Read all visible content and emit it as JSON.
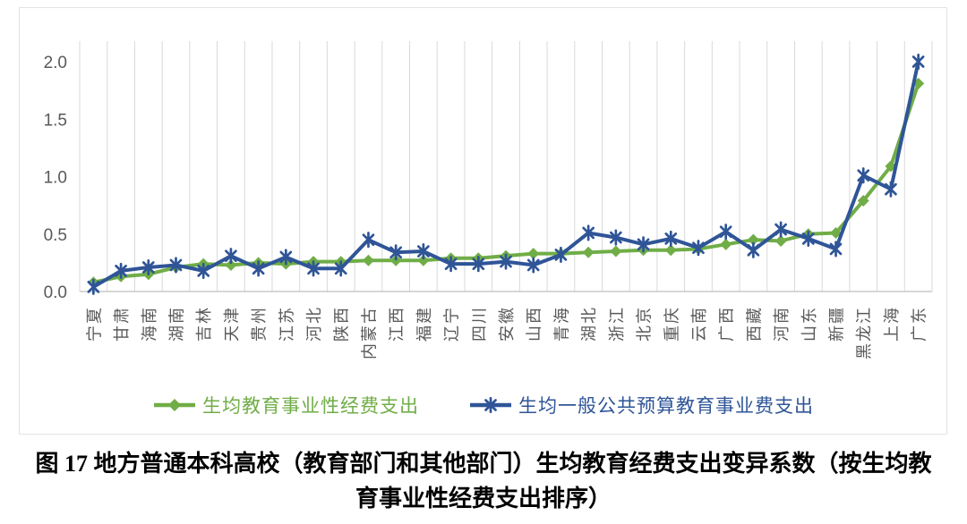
{
  "chart_data": {
    "type": "line",
    "categories": [
      "宁夏",
      "甘肃",
      "海南",
      "湖南",
      "吉林",
      "天津",
      "贵州",
      "江苏",
      "河北",
      "陕西",
      "内蒙古",
      "江西",
      "福建",
      "辽宁",
      "四川",
      "安徽",
      "山西",
      "青海",
      "湖北",
      "浙江",
      "北京",
      "重庆",
      "云南",
      "广西",
      "西藏",
      "河南",
      "山东",
      "新疆",
      "黑龙江",
      "上海",
      "广东"
    ],
    "series": [
      {
        "name": "生均教育事业性经费支出",
        "marker": "diamond",
        "color": "#70AD47",
        "values": [
          0.08,
          0.13,
          0.15,
          0.21,
          0.24,
          0.23,
          0.25,
          0.24,
          0.26,
          0.26,
          0.27,
          0.27,
          0.27,
          0.29,
          0.29,
          0.31,
          0.33,
          0.33,
          0.34,
          0.35,
          0.36,
          0.36,
          0.37,
          0.41,
          0.45,
          0.44,
          0.5,
          0.51,
          0.79,
          1.09,
          1.81
        ]
      },
      {
        "name": "生均一般公共预算教育事业费支出",
        "marker": "asterisk",
        "color": "#2F5597",
        "values": [
          0.04,
          0.18,
          0.21,
          0.23,
          0.18,
          0.31,
          0.2,
          0.3,
          0.2,
          0.2,
          0.45,
          0.34,
          0.35,
          0.24,
          0.24,
          0.26,
          0.23,
          0.32,
          0.51,
          0.47,
          0.41,
          0.46,
          0.38,
          0.52,
          0.36,
          0.54,
          0.46,
          0.37,
          1.01,
          0.89,
          2.0
        ]
      }
    ],
    "ylim": [
      0.0,
      2.0
    ],
    "yticks": [
      "0.0",
      "0.5",
      "1.0",
      "1.5",
      "2.0"
    ],
    "grid": "vertical-only",
    "legend_position": "bottom",
    "title": ""
  },
  "caption": {
    "line1": "图 17 地方普通本科高校（教育部门和其他部门）生均教育经费支出变异系数（按生均教",
    "line2": "育事业性经费支出排序）"
  },
  "colors": {
    "green_series": "#70AD47",
    "blue_series": "#2F5597",
    "gridline": "#D9D9D9",
    "axis_line": "#BFBFBF",
    "tick_text": "#595959",
    "caption_text": "#000000",
    "background": "#FFFFFF"
  }
}
